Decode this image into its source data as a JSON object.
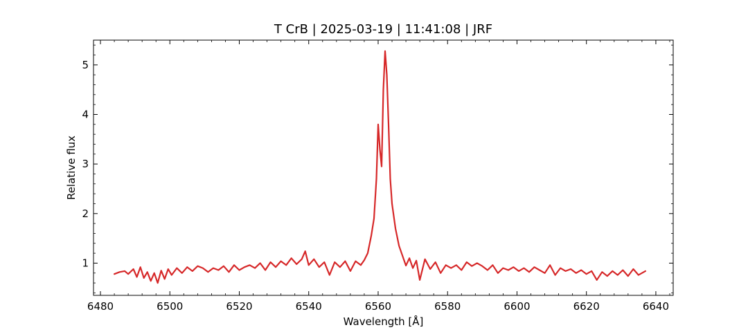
{
  "chart_data": {
    "type": "line",
    "title": "T CrB | 2025-03-19 | 11:41:08 | JRF",
    "xlabel": "Wavelength [Å]",
    "ylabel": "Relative flux",
    "xlim": [
      6478,
      6645
    ],
    "ylim": [
      0.35,
      5.5
    ],
    "xticks": [
      6480,
      6500,
      6520,
      6540,
      6560,
      6580,
      6600,
      6620,
      6640
    ],
    "yticks": [
      1,
      2,
      3,
      4,
      5
    ],
    "grid": false,
    "series": [
      {
        "color": "#d62728",
        "x": [
          6484.0,
          6485.5,
          6487.0,
          6488.0,
          6489.5,
          6490.5,
          6491.5,
          6492.5,
          6493.5,
          6494.5,
          6495.5,
          6496.5,
          6497.5,
          6498.5,
          6499.5,
          6500.5,
          6502.0,
          6503.5,
          6505.0,
          6506.5,
          6508.0,
          6509.5,
          6511.0,
          6512.5,
          6514.0,
          6515.5,
          6517.0,
          6518.5,
          6520.0,
          6521.5,
          6523.0,
          6524.5,
          6526.0,
          6527.5,
          6529.0,
          6530.5,
          6532.0,
          6533.5,
          6535.0,
          6536.5,
          6538.0,
          6539.0,
          6540.0,
          6541.5,
          6543.0,
          6544.5,
          6546.0,
          6547.5,
          6549.0,
          6550.5,
          6552.0,
          6553.5,
          6555.0,
          6556.0,
          6557.0,
          6558.0,
          6558.8,
          6559.5,
          6560.0,
          6560.5,
          6561.0,
          6561.5,
          6562.0,
          6562.5,
          6563.0,
          6563.5,
          6564.0,
          6565.0,
          6566.0,
          6567.0,
          6568.0,
          6569.0,
          6570.0,
          6571.0,
          6572.0,
          6573.5,
          6575.0,
          6576.5,
          6578.0,
          6579.5,
          6581.0,
          6582.5,
          6584.0,
          6585.5,
          6587.0,
          6588.5,
          6590.0,
          6591.5,
          6593.0,
          6594.5,
          6596.0,
          6597.5,
          6599.0,
          6600.5,
          6602.0,
          6603.5,
          6605.0,
          6606.5,
          6608.0,
          6609.5,
          6611.0,
          6612.5,
          6614.0,
          6615.5,
          6617.0,
          6618.5,
          6620.0,
          6621.5,
          6623.0,
          6624.5,
          6626.0,
          6627.5,
          6629.0,
          6630.5,
          6632.0,
          6633.5,
          6635.0,
          6637.0
        ],
        "y": [
          0.78,
          0.82,
          0.84,
          0.78,
          0.88,
          0.72,
          0.92,
          0.7,
          0.82,
          0.64,
          0.8,
          0.6,
          0.85,
          0.68,
          0.88,
          0.76,
          0.9,
          0.8,
          0.92,
          0.84,
          0.94,
          0.9,
          0.82,
          0.9,
          0.86,
          0.94,
          0.82,
          0.96,
          0.86,
          0.92,
          0.96,
          0.9,
          1.0,
          0.86,
          1.02,
          0.92,
          1.04,
          0.96,
          1.1,
          0.98,
          1.08,
          1.24,
          0.96,
          1.08,
          0.92,
          1.02,
          0.76,
          1.02,
          0.92,
          1.04,
          0.84,
          1.04,
          0.96,
          1.06,
          1.2,
          1.55,
          1.9,
          2.7,
          3.8,
          3.3,
          2.95,
          4.5,
          5.28,
          4.8,
          3.8,
          2.7,
          2.2,
          1.7,
          1.35,
          1.15,
          0.95,
          1.1,
          0.9,
          1.05,
          0.66,
          1.08,
          0.88,
          1.02,
          0.8,
          0.96,
          0.9,
          0.96,
          0.86,
          1.02,
          0.94,
          1.0,
          0.94,
          0.86,
          0.96,
          0.8,
          0.9,
          0.86,
          0.92,
          0.84,
          0.9,
          0.82,
          0.92,
          0.86,
          0.8,
          0.96,
          0.76,
          0.9,
          0.84,
          0.88,
          0.8,
          0.86,
          0.78,
          0.84,
          0.66,
          0.82,
          0.74,
          0.84,
          0.76,
          0.86,
          0.74,
          0.88,
          0.76,
          0.84
        ]
      }
    ]
  }
}
